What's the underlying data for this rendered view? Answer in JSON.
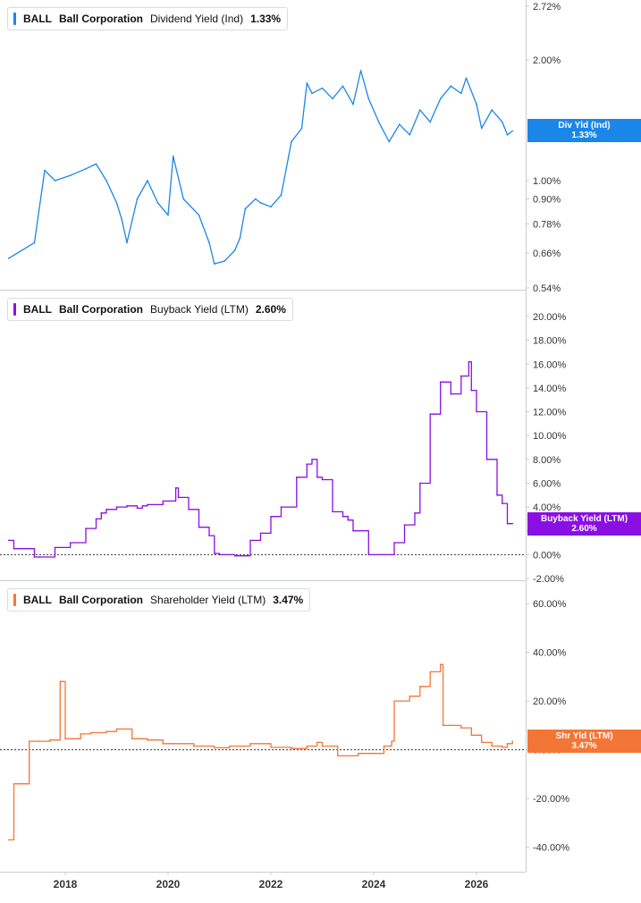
{
  "legend": {
    "ticker": "BALL",
    "company": "Ball Corporation"
  },
  "x_axis": {
    "tick_labels": [
      "2018",
      "2020",
      "2022",
      "2024",
      "2026"
    ]
  },
  "chart_data": [
    {
      "type": "line",
      "metric": "Dividend Yield (Ind)",
      "last_value": "1.33%",
      "tag_label": "Div Yld (Ind)",
      "color": "#1a86e8",
      "log_scale": true,
      "tick_labels": [
        "2.72%",
        "2.00%",
        "1.00%",
        "0.90%",
        "0.78%",
        "0.66%",
        "0.54%"
      ],
      "ylim": [
        0.54,
        2.72
      ],
      "x": [
        2016.9,
        2017.4,
        2017.6,
        2017.8,
        2018.1,
        2018.4,
        2018.6,
        2018.8,
        2019.0,
        2019.1,
        2019.2,
        2019.4,
        2019.6,
        2019.8,
        2020.0,
        2020.1,
        2020.3,
        2020.6,
        2020.8,
        2020.9,
        2021.1,
        2021.3,
        2021.4,
        2021.5,
        2021.7,
        2021.8,
        2022.0,
        2022.2,
        2022.4,
        2022.6,
        2022.7,
        2022.8,
        2023.0,
        2023.2,
        2023.4,
        2023.6,
        2023.75,
        2023.9,
        2024.1,
        2024.3,
        2024.5,
        2024.7,
        2024.9,
        2025.1,
        2025.3,
        2025.5,
        2025.7,
        2025.8,
        2026.0,
        2026.1,
        2026.3,
        2026.5,
        2026.6,
        2026.7
      ],
      "y": [
        0.64,
        0.7,
        1.06,
        1.0,
        1.03,
        1.07,
        1.1,
        1.0,
        0.88,
        0.8,
        0.7,
        0.9,
        1.0,
        0.88,
        0.82,
        1.15,
        0.9,
        0.82,
        0.7,
        0.62,
        0.63,
        0.67,
        0.72,
        0.85,
        0.9,
        0.88,
        0.86,
        0.92,
        1.25,
        1.35,
        1.75,
        1.65,
        1.7,
        1.6,
        1.72,
        1.55,
        1.88,
        1.6,
        1.4,
        1.25,
        1.38,
        1.3,
        1.5,
        1.4,
        1.6,
        1.72,
        1.65,
        1.8,
        1.55,
        1.35,
        1.5,
        1.4,
        1.3,
        1.33
      ]
    },
    {
      "type": "line",
      "metric": "Buyback Yield (LTM)",
      "last_value": "2.60%",
      "tag_label": "Buyback Yield (LTM)",
      "color": "#8a0fe3",
      "tick_labels": [
        "20.00%",
        "18.00%",
        "16.00%",
        "14.00%",
        "12.00%",
        "10.00%",
        "8.00%",
        "6.00%",
        "4.00%",
        "2.00%",
        "0.00%",
        "-2.00%"
      ],
      "ylim": [
        -2,
        20
      ],
      "x": [
        2016.9,
        2017.0,
        2017.4,
        2017.5,
        2017.8,
        2018.1,
        2018.4,
        2018.6,
        2018.7,
        2018.8,
        2019.0,
        2019.2,
        2019.4,
        2019.5,
        2019.6,
        2019.9,
        2020.15,
        2020.2,
        2020.4,
        2020.6,
        2020.8,
        2020.9,
        2021.0,
        2021.3,
        2021.6,
        2021.8,
        2022.0,
        2022.2,
        2022.5,
        2022.7,
        2022.8,
        2022.9,
        2023.0,
        2023.2,
        2023.4,
        2023.5,
        2023.6,
        2023.9,
        2024.2,
        2024.4,
        2024.6,
        2024.8,
        2024.9,
        2025.1,
        2025.3,
        2025.5,
        2025.7,
        2025.85,
        2025.9,
        2026.0,
        2026.2,
        2026.4,
        2026.5,
        2026.6,
        2026.7
      ],
      "y": [
        1.2,
        0.5,
        -0.2,
        -0.2,
        0.6,
        1.0,
        2.2,
        3.0,
        3.5,
        3.8,
        4.0,
        4.1,
        3.9,
        4.1,
        4.2,
        4.5,
        5.6,
        4.8,
        3.8,
        2.3,
        1.6,
        0.1,
        0.0,
        -0.1,
        1.2,
        1.8,
        3.2,
        4.0,
        6.5,
        7.6,
        8.0,
        6.5,
        6.3,
        3.6,
        3.2,
        2.9,
        2.0,
        0.0,
        0.0,
        1.0,
        2.5,
        3.5,
        6.0,
        11.8,
        14.5,
        13.5,
        15.0,
        16.2,
        13.8,
        12.0,
        8.0,
        5.0,
        4.3,
        2.6,
        2.6
      ]
    },
    {
      "type": "line",
      "metric": "Shareholder Yield (LTM)",
      "last_value": "3.47%",
      "tag_label": "Shr Yld (LTM)",
      "color": "#f47636",
      "tick_labels": [
        "60.00%",
        "40.00%",
        "20.00%",
        "0.00%",
        "-20.00%",
        "-40.00%"
      ],
      "ylim": [
        -42,
        63
      ],
      "x": [
        2016.9,
        2017.0,
        2017.05,
        2017.25,
        2017.3,
        2017.5,
        2017.7,
        2017.9,
        2018.0,
        2018.3,
        2018.5,
        2018.8,
        2019.0,
        2019.3,
        2019.6,
        2019.9,
        2020.1,
        2020.5,
        2020.9,
        2021.2,
        2021.6,
        2022.0,
        2022.4,
        2022.7,
        2022.9,
        2023.0,
        2023.3,
        2023.7,
        2024.0,
        2024.2,
        2024.35,
        2024.4,
        2024.7,
        2024.9,
        2025.1,
        2025.3,
        2025.35,
        2025.45,
        2025.7,
        2025.9,
        2026.1,
        2026.3,
        2026.5,
        2026.6,
        2026.7
      ],
      "y": [
        -37,
        -14,
        -14,
        -14,
        3.5,
        3.5,
        4.0,
        28.0,
        4.5,
        6.5,
        7.0,
        7.5,
        8.5,
        4.5,
        4.0,
        2.5,
        2.5,
        1.5,
        0.8,
        1.5,
        2.5,
        1.0,
        0.5,
        1.5,
        3.0,
        1.5,
        -2.5,
        -1.5,
        -1.5,
        1.5,
        3.5,
        20.0,
        22.0,
        26.0,
        32.0,
        35.0,
        10.0,
        10.0,
        9.0,
        6.0,
        3.0,
        1.5,
        1.0,
        2.5,
        3.47
      ]
    }
  ]
}
